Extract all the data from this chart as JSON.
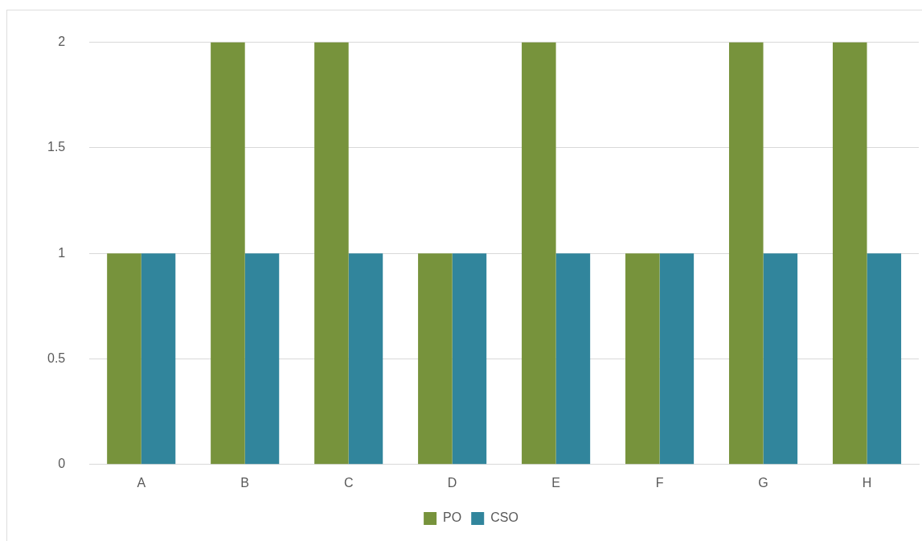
{
  "chart_data": {
    "type": "bar",
    "categories": [
      "A",
      "B",
      "C",
      "D",
      "E",
      "F",
      "G",
      "H"
    ],
    "series": [
      {
        "name": "PO",
        "color": "#77933c",
        "values": [
          1,
          2,
          2,
          1,
          2,
          1,
          2,
          2
        ]
      },
      {
        "name": "CSO",
        "color": "#31859c",
        "values": [
          1,
          1,
          1,
          1,
          1,
          1,
          1,
          1
        ]
      }
    ],
    "ylim": [
      0,
      2
    ],
    "yticks": [
      0,
      0.5,
      1,
      1.5,
      2
    ],
    "grid": "y",
    "legend": "bottom"
  }
}
